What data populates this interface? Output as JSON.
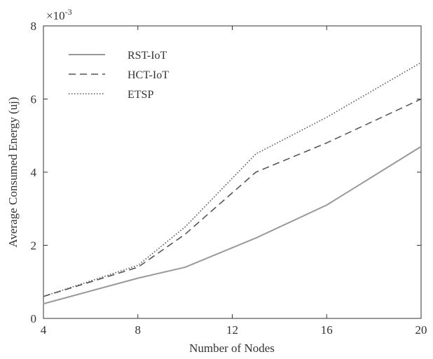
{
  "chart_data": {
    "type": "line",
    "title": "",
    "xlabel": "Number of Nodes",
    "ylabel": "Average Consumed Energy (uj)",
    "y_multiplier": "×10",
    "y_multiplier_exponent": "-3",
    "xlim": [
      4,
      20
    ],
    "ylim": [
      0,
      8
    ],
    "x_ticks": [
      4,
      8,
      12,
      16,
      20
    ],
    "y_ticks": [
      0,
      2,
      4,
      6,
      8
    ],
    "x_tick_labels": [
      "4",
      "8",
      "12",
      "16",
      "20"
    ],
    "y_tick_labels": [
      "0",
      "2",
      "4",
      "6",
      "8"
    ],
    "grid": false,
    "legend_position": "top-left",
    "x": [
      4,
      8,
      10,
      13,
      16,
      20
    ],
    "series": [
      {
        "name": "RST-IoT",
        "style": "solid",
        "color": "#999999",
        "values": [
          0.4,
          1.1,
          1.4,
          2.2,
          3.1,
          4.7
        ]
      },
      {
        "name": "HCT-IoT",
        "style": "dashed",
        "color": "#555555",
        "values": [
          0.6,
          1.4,
          2.3,
          4.0,
          4.8,
          6.0
        ]
      },
      {
        "name": "ETSP",
        "style": "dotted",
        "color": "#555555",
        "values": [
          0.6,
          1.45,
          2.5,
          4.5,
          5.5,
          7.0
        ]
      }
    ]
  }
}
